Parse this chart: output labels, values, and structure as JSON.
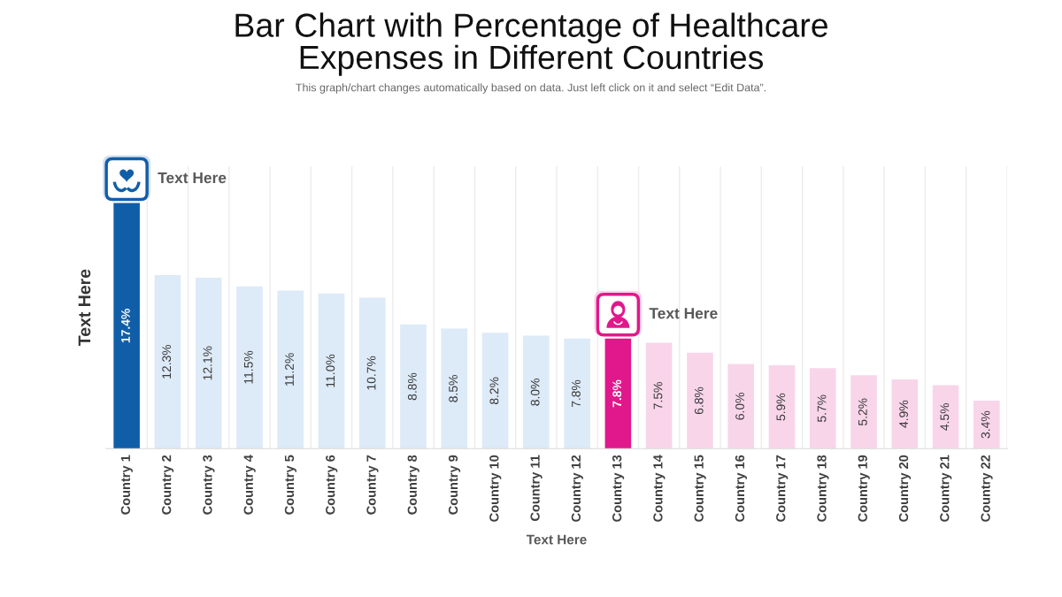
{
  "chart_data": {
    "type": "bar",
    "title": "Bar Chart with Percentage of Healthcare\nExpenses in Different Countries",
    "subtitle": "This graph/chart changes automatically based on data. Just left click on it and select “Edit Data”.",
    "xlabel": "Text Here",
    "ylabel": "Text Here",
    "categories": [
      "Country 1",
      "Country 2",
      "Country 3",
      "Country 4",
      "Country 5",
      "Country 6",
      "Country 7",
      "Country 8",
      "Country 9",
      "Country 10",
      "Country 11",
      "Country 12",
      "Country 13",
      "Country 14",
      "Country 15",
      "Country 16",
      "Country 17",
      "Country 18",
      "Country 19",
      "Country 20",
      "Country 21",
      "Country 22"
    ],
    "values": [
      17.4,
      12.3,
      12.1,
      11.5,
      11.2,
      11.0,
      10.7,
      8.8,
      8.5,
      8.2,
      8.0,
      7.8,
      7.8,
      7.5,
      6.8,
      6.0,
      5.9,
      5.7,
      5.2,
      4.9,
      4.5,
      3.4
    ],
    "value_labels": [
      "17.4%",
      "12.3%",
      "12.1%",
      "11.5%",
      "11.2%",
      "11.0%",
      "10.7%",
      "8.8%",
      "8.5%",
      "8.2%",
      "8.0%",
      "7.8%",
      "7.8%",
      "7.5%",
      "6.8%",
      "6.0%",
      "5.9%",
      "5.7%",
      "5.2%",
      "4.9%",
      "4.5%",
      "3.4%"
    ],
    "colors": [
      "#115ea8",
      "#ddeaf8",
      "#ddeaf8",
      "#ddeaf8",
      "#ddeaf8",
      "#ddeaf8",
      "#ddeaf8",
      "#ddeaf8",
      "#ddeaf8",
      "#ddeaf8",
      "#ddeaf8",
      "#ddeaf8",
      "#e0188c",
      "#f9d5ea",
      "#f9d5ea",
      "#f9d5ea",
      "#f9d5ea",
      "#f9d5ea",
      "#f9d5ea",
      "#f9d5ea",
      "#f9d5ea",
      "#f9d5ea"
    ],
    "ylim": [
      0,
      20
    ],
    "grid": "x",
    "tick_labels": "x",
    "annotations": [
      "Text Here",
      "Text Here"
    ]
  }
}
